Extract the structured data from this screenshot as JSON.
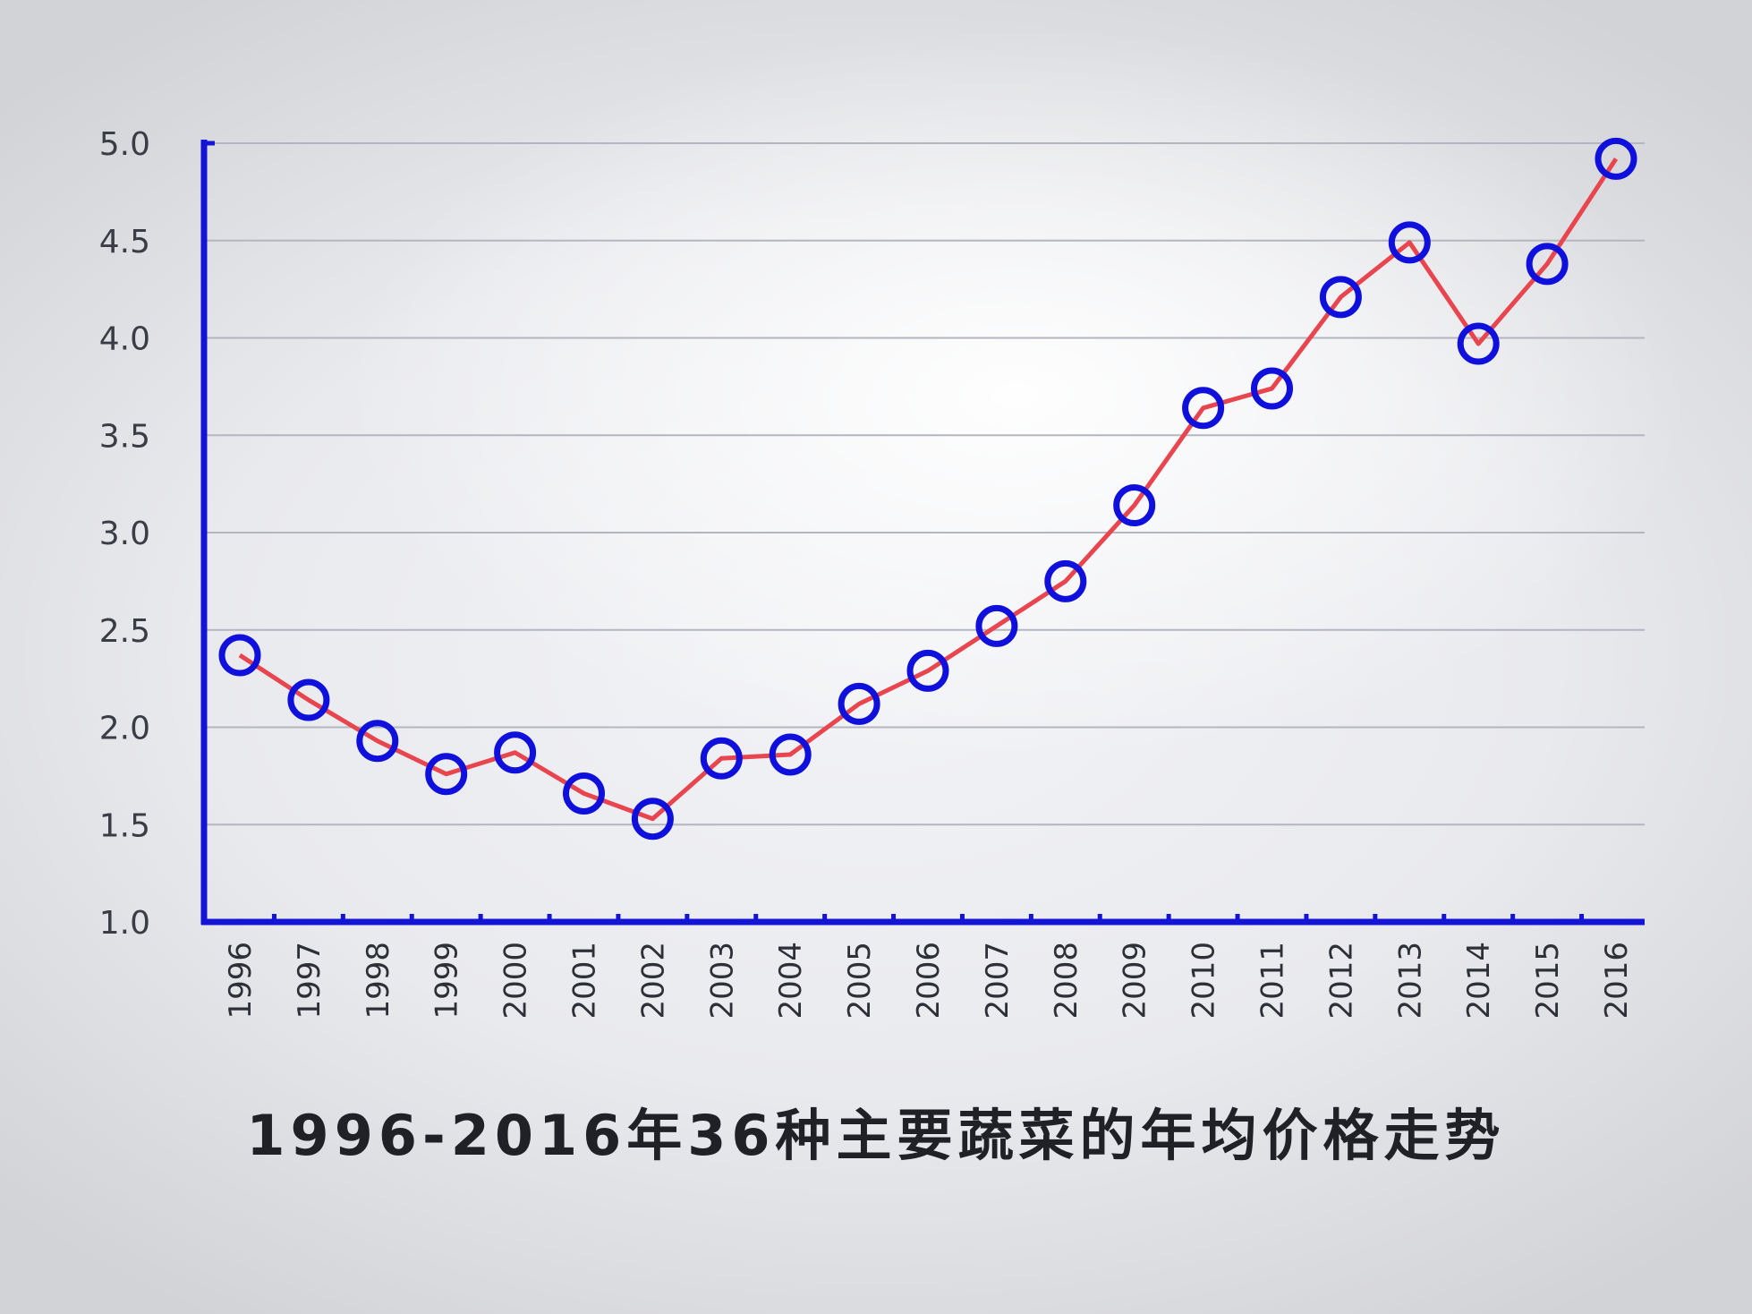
{
  "chart_data": {
    "type": "line",
    "title": "1996-2016年36种主要蔬菜的年均价格走势",
    "xlabel": "",
    "ylabel": "",
    "categories": [
      "1996",
      "1997",
      "1998",
      "1999",
      "2000",
      "2001",
      "2002",
      "2003",
      "2004",
      "2005",
      "2006",
      "2007",
      "2008",
      "2009",
      "2010",
      "2011",
      "2012",
      "2013",
      "2014",
      "2015",
      "2016"
    ],
    "series": [
      {
        "values": [
          2.37,
          2.14,
          1.93,
          1.76,
          1.87,
          1.66,
          1.53,
          1.84,
          1.86,
          2.12,
          2.29,
          2.52,
          2.75,
          3.14,
          3.64,
          3.74,
          4.21,
          4.49,
          3.97,
          4.38,
          4.92
        ]
      }
    ],
    "yticks": [
      "1.0",
      "1.5",
      "2.0",
      "2.5",
      "3.0",
      "3.5",
      "4.0",
      "4.5",
      "5.0"
    ],
    "ylim": [
      1.0,
      5.0
    ],
    "grid": true,
    "legend": "none",
    "colors": {
      "axis": "#1414d6",
      "line": "#e8454f",
      "marker": "#1010dd",
      "grid": "#b4b6bf"
    }
  }
}
